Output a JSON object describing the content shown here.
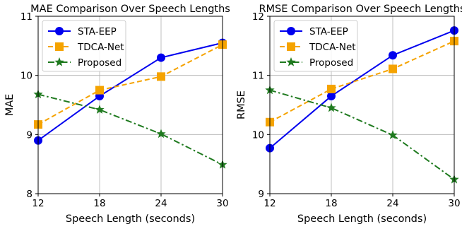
{
  "chart_data": [
    {
      "type": "line",
      "title": "MAE Comparison Over Speech Lengths",
      "xlabel": "Speech Length (seconds)",
      "ylabel": "MAE",
      "x": [
        12,
        18,
        24,
        30
      ],
      "xlim": [
        12,
        30
      ],
      "ylim": [
        8,
        11
      ],
      "xticks": [
        "12",
        "18",
        "24",
        "30"
      ],
      "yticks": [
        "8",
        "9",
        "10",
        "11"
      ],
      "grid": true,
      "legend_position": "top-left",
      "series": [
        {
          "name": "STA-EEP",
          "values": [
            8.9,
            9.65,
            10.3,
            10.55
          ],
          "color": "#0000ee",
          "linestyle": "solid",
          "marker": "circle"
        },
        {
          "name": "TDCA-Net",
          "values": [
            9.17,
            9.75,
            9.98,
            10.52
          ],
          "color": "#f5a300",
          "linestyle": "dashed",
          "marker": "square"
        },
        {
          "name": "Proposed",
          "values": [
            9.68,
            9.42,
            9.01,
            8.49
          ],
          "color": "#1f7a1f",
          "linestyle": "dashdot",
          "marker": "star"
        }
      ]
    },
    {
      "type": "line",
      "title": "RMSE Comparison Over Speech Lengths",
      "xlabel": "Speech Length (seconds)",
      "ylabel": "RMSE",
      "x": [
        12,
        18,
        24,
        30
      ],
      "xlim": [
        12,
        30
      ],
      "ylim": [
        9,
        12
      ],
      "xticks": [
        "12",
        "18",
        "24",
        "30"
      ],
      "yticks": [
        "9",
        "10",
        "11",
        "12"
      ],
      "grid": true,
      "legend_position": "top-left",
      "series": [
        {
          "name": "STA-EEP",
          "values": [
            9.77,
            10.65,
            11.34,
            11.76
          ],
          "color": "#0000ee",
          "linestyle": "solid",
          "marker": "circle"
        },
        {
          "name": "TDCA-Net",
          "values": [
            10.21,
            10.77,
            11.11,
            11.58
          ],
          "color": "#f5a300",
          "linestyle": "dashed",
          "marker": "square"
        },
        {
          "name": "Proposed",
          "values": [
            10.75,
            10.45,
            9.99,
            9.24
          ],
          "color": "#1f7a1f",
          "linestyle": "dashdot",
          "marker": "star"
        }
      ]
    }
  ]
}
